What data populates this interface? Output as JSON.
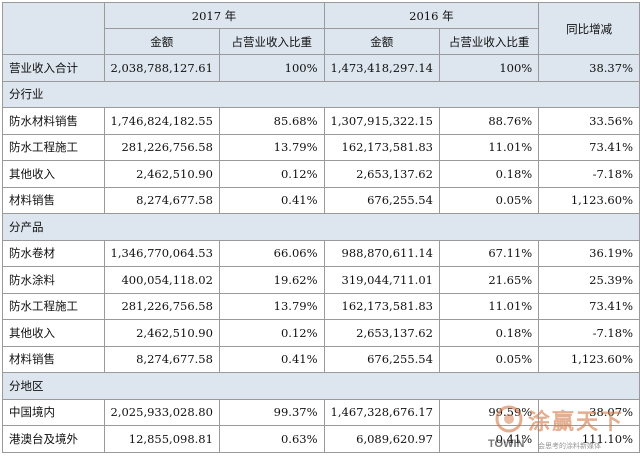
{
  "header": {
    "year_2017": "2017 年",
    "year_2016": "2016 年",
    "yoy": "同比增减",
    "amount": "金额",
    "ratio": "占营业收入比重"
  },
  "total": {
    "label": "营业收入合计",
    "a2017": "2,038,788,127.61",
    "r2017": "100%",
    "a2016": "1,473,418,297.14",
    "r2016": "100%",
    "yoy": "38.37%"
  },
  "sections": [
    {
      "title": "分行业",
      "rows": [
        {
          "label": "防水材料销售",
          "a2017": "1,746,824,182.55",
          "r2017": "85.68%",
          "a2016": "1,307,915,322.15",
          "r2016": "88.76%",
          "yoy": "33.56%"
        },
        {
          "label": "防水工程施工",
          "a2017": "281,226,756.58",
          "r2017": "13.79%",
          "a2016": "162,173,581.83",
          "r2016": "11.01%",
          "yoy": "73.41%"
        },
        {
          "label": "其他收入",
          "a2017": "2,462,510.90",
          "r2017": "0.12%",
          "a2016": "2,653,137.62",
          "r2016": "0.18%",
          "yoy": "-7.18%"
        },
        {
          "label": "材料销售",
          "a2017": "8,274,677.58",
          "r2017": "0.41%",
          "a2016": "676,255.54",
          "r2016": "0.05%",
          "yoy": "1,123.60%"
        }
      ]
    },
    {
      "title": "分产品",
      "rows": [
        {
          "label": "防水卷材",
          "a2017": "1,346,770,064.53",
          "r2017": "66.06%",
          "a2016": "988,870,611.14",
          "r2016": "67.11%",
          "yoy": "36.19%"
        },
        {
          "label": "防水涂料",
          "a2017": "400,054,118.02",
          "r2017": "19.62%",
          "a2016": "319,044,711.01",
          "r2016": "21.65%",
          "yoy": "25.39%"
        },
        {
          "label": "防水工程施工",
          "a2017": "281,226,756.58",
          "r2017": "13.79%",
          "a2016": "162,173,581.83",
          "r2016": "11.01%",
          "yoy": "73.41%"
        },
        {
          "label": "其他收入",
          "a2017": "2,462,510.90",
          "r2017": "0.12%",
          "a2016": "2,653,137.62",
          "r2016": "0.18%",
          "yoy": "-7.18%"
        },
        {
          "label": "材料销售",
          "a2017": "8,274,677.58",
          "r2017": "0.41%",
          "a2016": "676,255.54",
          "r2016": "0.05%",
          "yoy": "1,123.60%"
        }
      ]
    },
    {
      "title": "分地区",
      "rows": [
        {
          "label": "中国境内",
          "a2017": "2,025,933,028.80",
          "r2017": "99.37%",
          "a2016": "1,467,328,676.17",
          "r2016": "99.59%",
          "yoy": "38.07%"
        },
        {
          "label": "港澳台及境外",
          "a2017": "12,855,098.81",
          "r2017": "0.63%",
          "a2016": "6,089,620.97",
          "r2016": "0.41%",
          "yoy": "111.10%"
        }
      ]
    }
  ],
  "watermark": {
    "cn": "涂赢天下",
    "en": "TOWIN",
    "sub": "会思考的涂料新媒体"
  }
}
